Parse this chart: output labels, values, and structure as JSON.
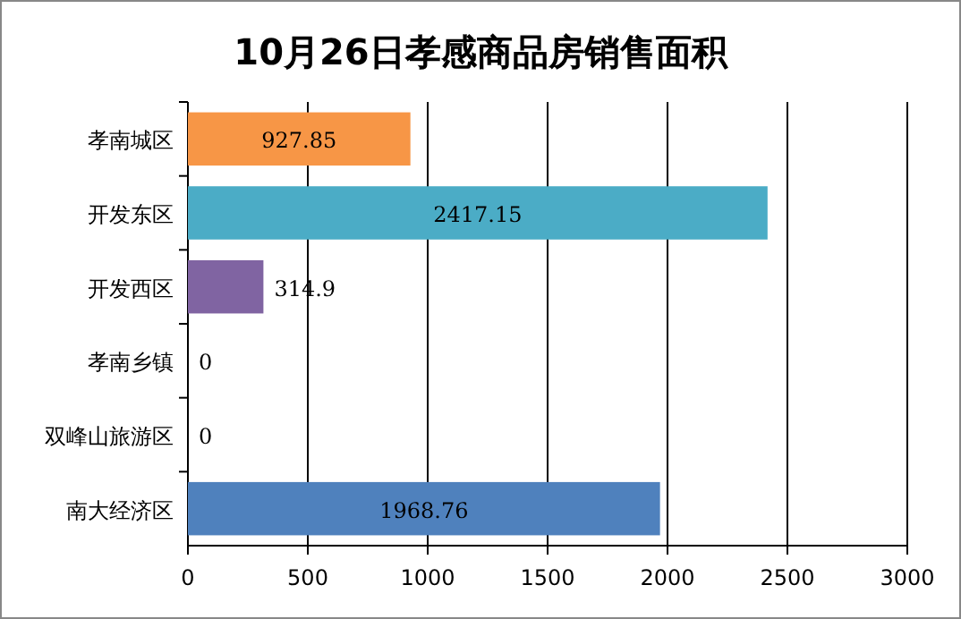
{
  "chart_data": {
    "type": "bar",
    "orientation": "horizontal",
    "title": "10月26日孝感商品房销售面积",
    "categories": [
      "孝南城区",
      "开发东区",
      "开发西区",
      "孝南乡镇",
      "双峰山旅游区",
      "南大经济区"
    ],
    "values": [
      927.85,
      2417.15,
      314.9,
      0,
      0,
      1968.76
    ],
    "colors": [
      "#f79646",
      "#4bacc6",
      "#8064a2",
      "#9bbb59",
      "#c0504d",
      "#4f81bd"
    ],
    "xlim": [
      0,
      3000
    ],
    "xticks": [
      0,
      500,
      1000,
      1500,
      2000,
      2500,
      3000
    ],
    "grid": "x",
    "data_labels": true
  }
}
